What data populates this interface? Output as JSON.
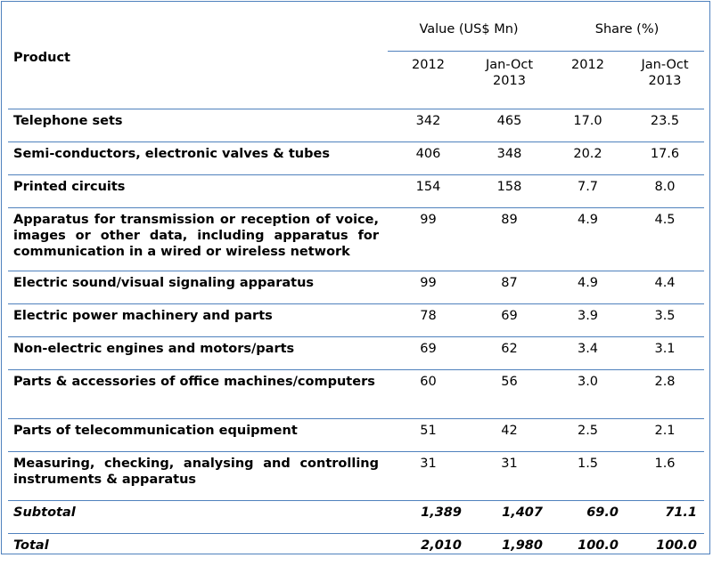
{
  "header": {
    "product": "Product",
    "value_group": "Value (US$ Mn)",
    "share_group": "Share (%)",
    "sub": [
      "2012",
      "Jan-Oct 2013",
      "2012",
      "Jan-Oct 2013"
    ]
  },
  "rows": [
    {
      "product": "Telephone sets",
      "v2012": "342",
      "v2013": "465",
      "s2012": "17.0",
      "s2013": "23.5"
    },
    {
      "product": "Semi-conductors, electronic valves & tubes",
      "v2012": "406",
      "v2013": "348",
      "s2012": "20.2",
      "s2013": "17.6"
    },
    {
      "product": "Printed circuits",
      "v2012": "154",
      "v2013": "158",
      "s2012": "7.7",
      "s2013": "8.0"
    },
    {
      "product": "Apparatus for transmission or reception of voice, images or other data, including apparatus for communication in a wired or wireless network",
      "v2012": "99",
      "v2013": "89",
      "s2012": "4.9",
      "s2013": "4.5"
    },
    {
      "product": "Electric sound/visual signaling apparatus",
      "v2012": "99",
      "v2013": "87",
      "s2012": "4.9",
      "s2013": "4.4"
    },
    {
      "product": "Electric power machinery and parts",
      "v2012": "78",
      "v2013": "69",
      "s2012": "3.9",
      "s2013": "3.5"
    },
    {
      "product": "Non-electric engines and motors/parts",
      "v2012": "69",
      "v2013": "62",
      "s2012": "3.4",
      "s2013": "3.1"
    },
    {
      "product": "Parts & accessories of office machines/computers",
      "v2012": "60",
      "v2013": "56",
      "s2012": "3.0",
      "s2013": "2.8"
    },
    {
      "product": "Parts of telecommunication equipment",
      "v2012": "51",
      "v2013": "42",
      "s2012": "2.5",
      "s2013": "2.1"
    },
    {
      "product": "Measuring, checking, analysing and controlling instruments & apparatus",
      "v2012": "31",
      "v2013": "31",
      "s2012": "1.5",
      "s2013": "1.6"
    }
  ],
  "subtotal": {
    "label": "Subtotal",
    "v2012": "1,389",
    "v2013": "1,407",
    "s2012": "69.0",
    "s2013": "71.1"
  },
  "total": {
    "label": "Total",
    "v2012": "2,010",
    "v2013": "1,980",
    "s2012": "100.0",
    "s2013": "100.0"
  }
}
